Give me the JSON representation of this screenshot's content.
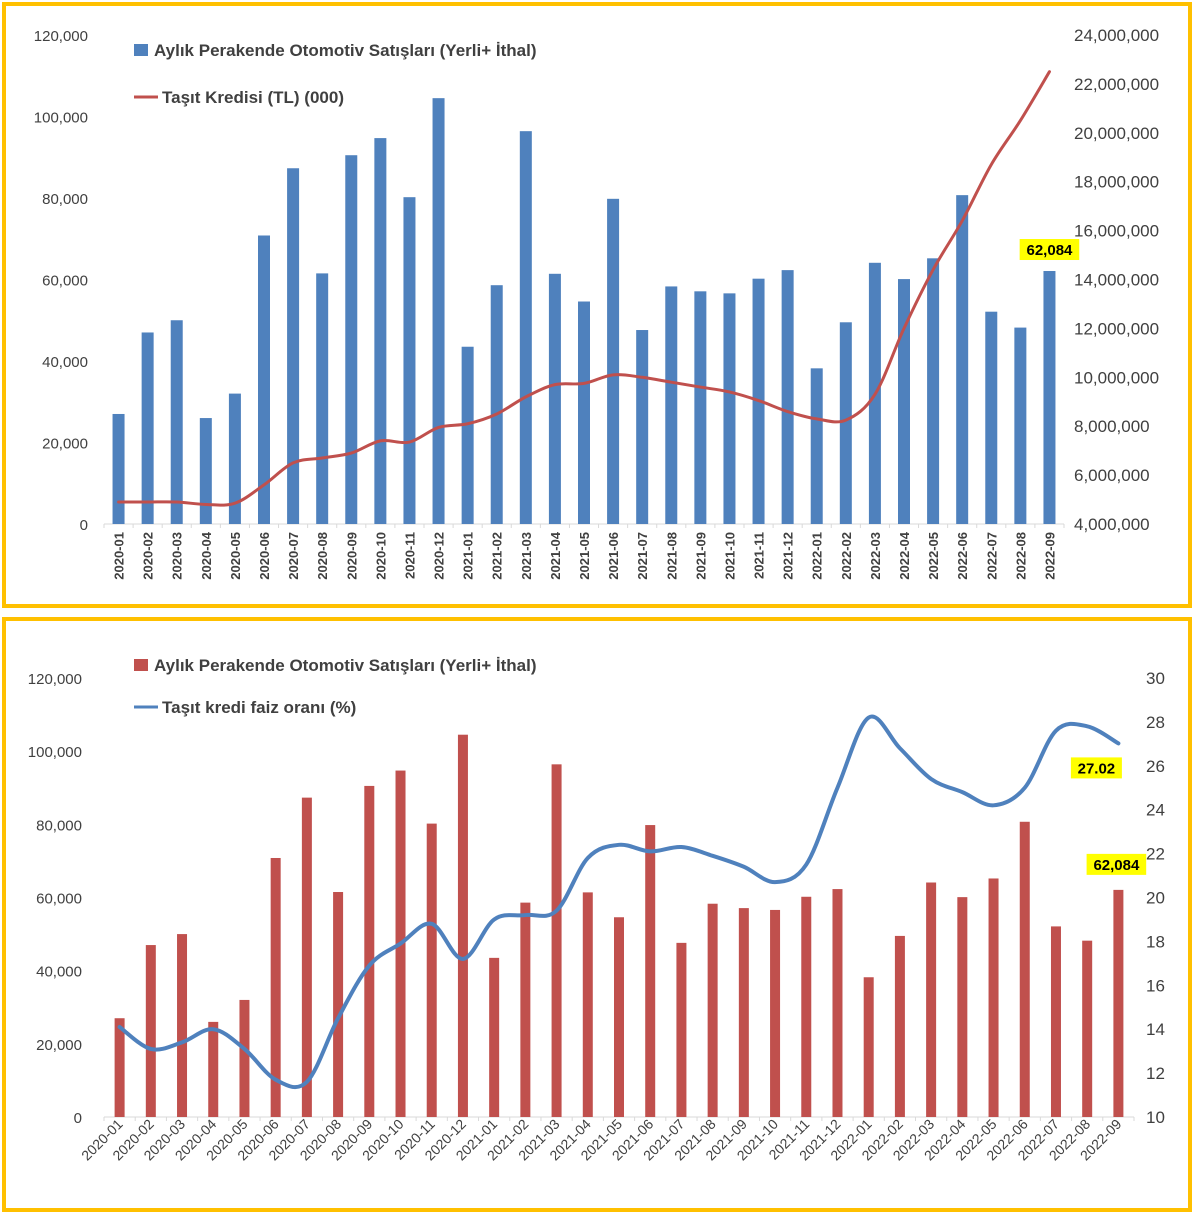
{
  "charts": [
    {
      "chart_data": {
        "type": "bar+line",
        "categories": [
          "2020-01",
          "2020-02",
          "2020-03",
          "2020-04",
          "2020-05",
          "2020-06",
          "2020-07",
          "2020-08",
          "2020-09",
          "2020-10",
          "2020-11",
          "2020-12",
          "2021-01",
          "2021-02",
          "2021-03",
          "2021-04",
          "2021-05",
          "2021-06",
          "2021-07",
          "2021-08",
          "2021-09",
          "2021-10",
          "2021-11",
          "2021-12",
          "2022-01",
          "2022-02",
          "2022-03",
          "2022-04",
          "2022-05",
          "2022-06",
          "2022-07",
          "2022-08",
          "2022-09"
        ],
        "series": [
          {
            "name": "Aylık Perakende Otomotiv Satışları (Yerli+ İthal)",
            "type": "bar",
            "axis": "left",
            "color": "#4F81BD",
            "values": [
              27000,
              47000,
              50000,
              26000,
              32000,
              70800,
              87300,
              61500,
              90500,
              94700,
              80200,
              104500,
              43500,
              58600,
              96400,
              61400,
              54600,
              79800,
              47600,
              58300,
              57100,
              56600,
              60200,
              62300,
              38200,
              49500,
              64100,
              60100,
              65200,
              80700,
              52100,
              48200,
              62084
            ]
          },
          {
            "name": "Taşıt Kredisi (TL) (000)",
            "type": "line",
            "axis": "right",
            "color": "#C0504D",
            "values": [
              4900000,
              4900000,
              4900000,
              4800000,
              4850000,
              5600000,
              6500000,
              6700000,
              6900000,
              7400000,
              7350000,
              7950000,
              8100000,
              8500000,
              9200000,
              9700000,
              9750000,
              10100000,
              10000000,
              9800000,
              9600000,
              9400000,
              9050000,
              8600000,
              8300000,
              8250000,
              9300000,
              12000000,
              14400000,
              16400000,
              18700000,
              20500000,
              22500000
            ]
          }
        ],
        "ylim_left": [
          0,
          120000
        ],
        "ylim_right": [
          4000000,
          24000000
        ],
        "yticks_left": [
          "0",
          "20,000",
          "40,000",
          "60,000",
          "80,000",
          "100,000",
          "120,000"
        ],
        "yticks_right": [
          "4,000,000",
          "6,000,000",
          "8,000,000",
          "10,000,000",
          "12,000,000",
          "14,000,000",
          "16,000,000",
          "18,000,000",
          "20,000,000",
          "22,000,000",
          "24,000,000"
        ],
        "legend_position": "top-left",
        "grid": false
      },
      "callouts": [
        {
          "text": "62,084",
          "series": 0,
          "index": 32
        }
      ],
      "label_colors": {
        "callout_bg": "#FFFF00"
      }
    },
    {
      "chart_data": {
        "type": "bar+line",
        "categories": [
          "2020-01",
          "2020-02",
          "2020-03",
          "2020-04",
          "2020-05",
          "2020-06",
          "2020-07",
          "2020-08",
          "2020-09",
          "2020-10",
          "2020-11",
          "2020-12",
          "2021-01",
          "2021-02",
          "2021-03",
          "2021-04",
          "2021-05",
          "2021-06",
          "2021-07",
          "2021-08",
          "2021-09",
          "2021-10",
          "2021-11",
          "2021-12",
          "2022-01",
          "2022-02",
          "2022-03",
          "2022-04",
          "2022-05",
          "2022-06",
          "2022-07",
          "2022-08",
          "2022-09"
        ],
        "series": [
          {
            "name": "Aylık Perakende Otomotiv Satışları (Yerli+ İthal)",
            "type": "bar",
            "axis": "left",
            "color": "#C0504D",
            "values": [
              27000,
              47000,
              50000,
              26000,
              32000,
              70800,
              87300,
              61500,
              90500,
              94700,
              80200,
              104500,
              43500,
              58600,
              96400,
              61400,
              54600,
              79800,
              47600,
              58300,
              57100,
              56600,
              60200,
              62300,
              38200,
              49500,
              64100,
              60100,
              65200,
              80700,
              52100,
              48200,
              62084
            ]
          },
          {
            "name": "Taşıt kredi faiz oranı (%)",
            "type": "line",
            "axis": "right",
            "color": "#4F81BD",
            "values": [
              14.1,
              13.1,
              13.4,
              14.0,
              13.1,
              11.7,
              11.6,
              14.5,
              16.9,
              17.9,
              18.8,
              17.2,
              19.0,
              19.2,
              19.4,
              21.8,
              22.4,
              22.1,
              22.3,
              21.9,
              21.4,
              20.7,
              21.5,
              25.0,
              28.2,
              26.8,
              25.4,
              24.8,
              24.2,
              25.0,
              27.6,
              27.8,
              27.02
            ]
          }
        ],
        "ylim_left": [
          0,
          120000
        ],
        "ylim_right": [
          10,
          30
        ],
        "yticks_left": [
          "0",
          "20,000",
          "40,000",
          "60,000",
          "80,000",
          "100,000",
          "120,000"
        ],
        "yticks_right": [
          "10",
          "12",
          "14",
          "16",
          "18",
          "20",
          "22",
          "24",
          "26",
          "28",
          "30"
        ],
        "legend_position": "top-left",
        "grid": false
      },
      "callouts": [
        {
          "text": "62,084",
          "series": 0,
          "index": 32
        },
        {
          "text": "27.02",
          "series": 1,
          "index": 32
        }
      ],
      "label_colors": {
        "callout_bg": "#FFFF00"
      }
    }
  ]
}
